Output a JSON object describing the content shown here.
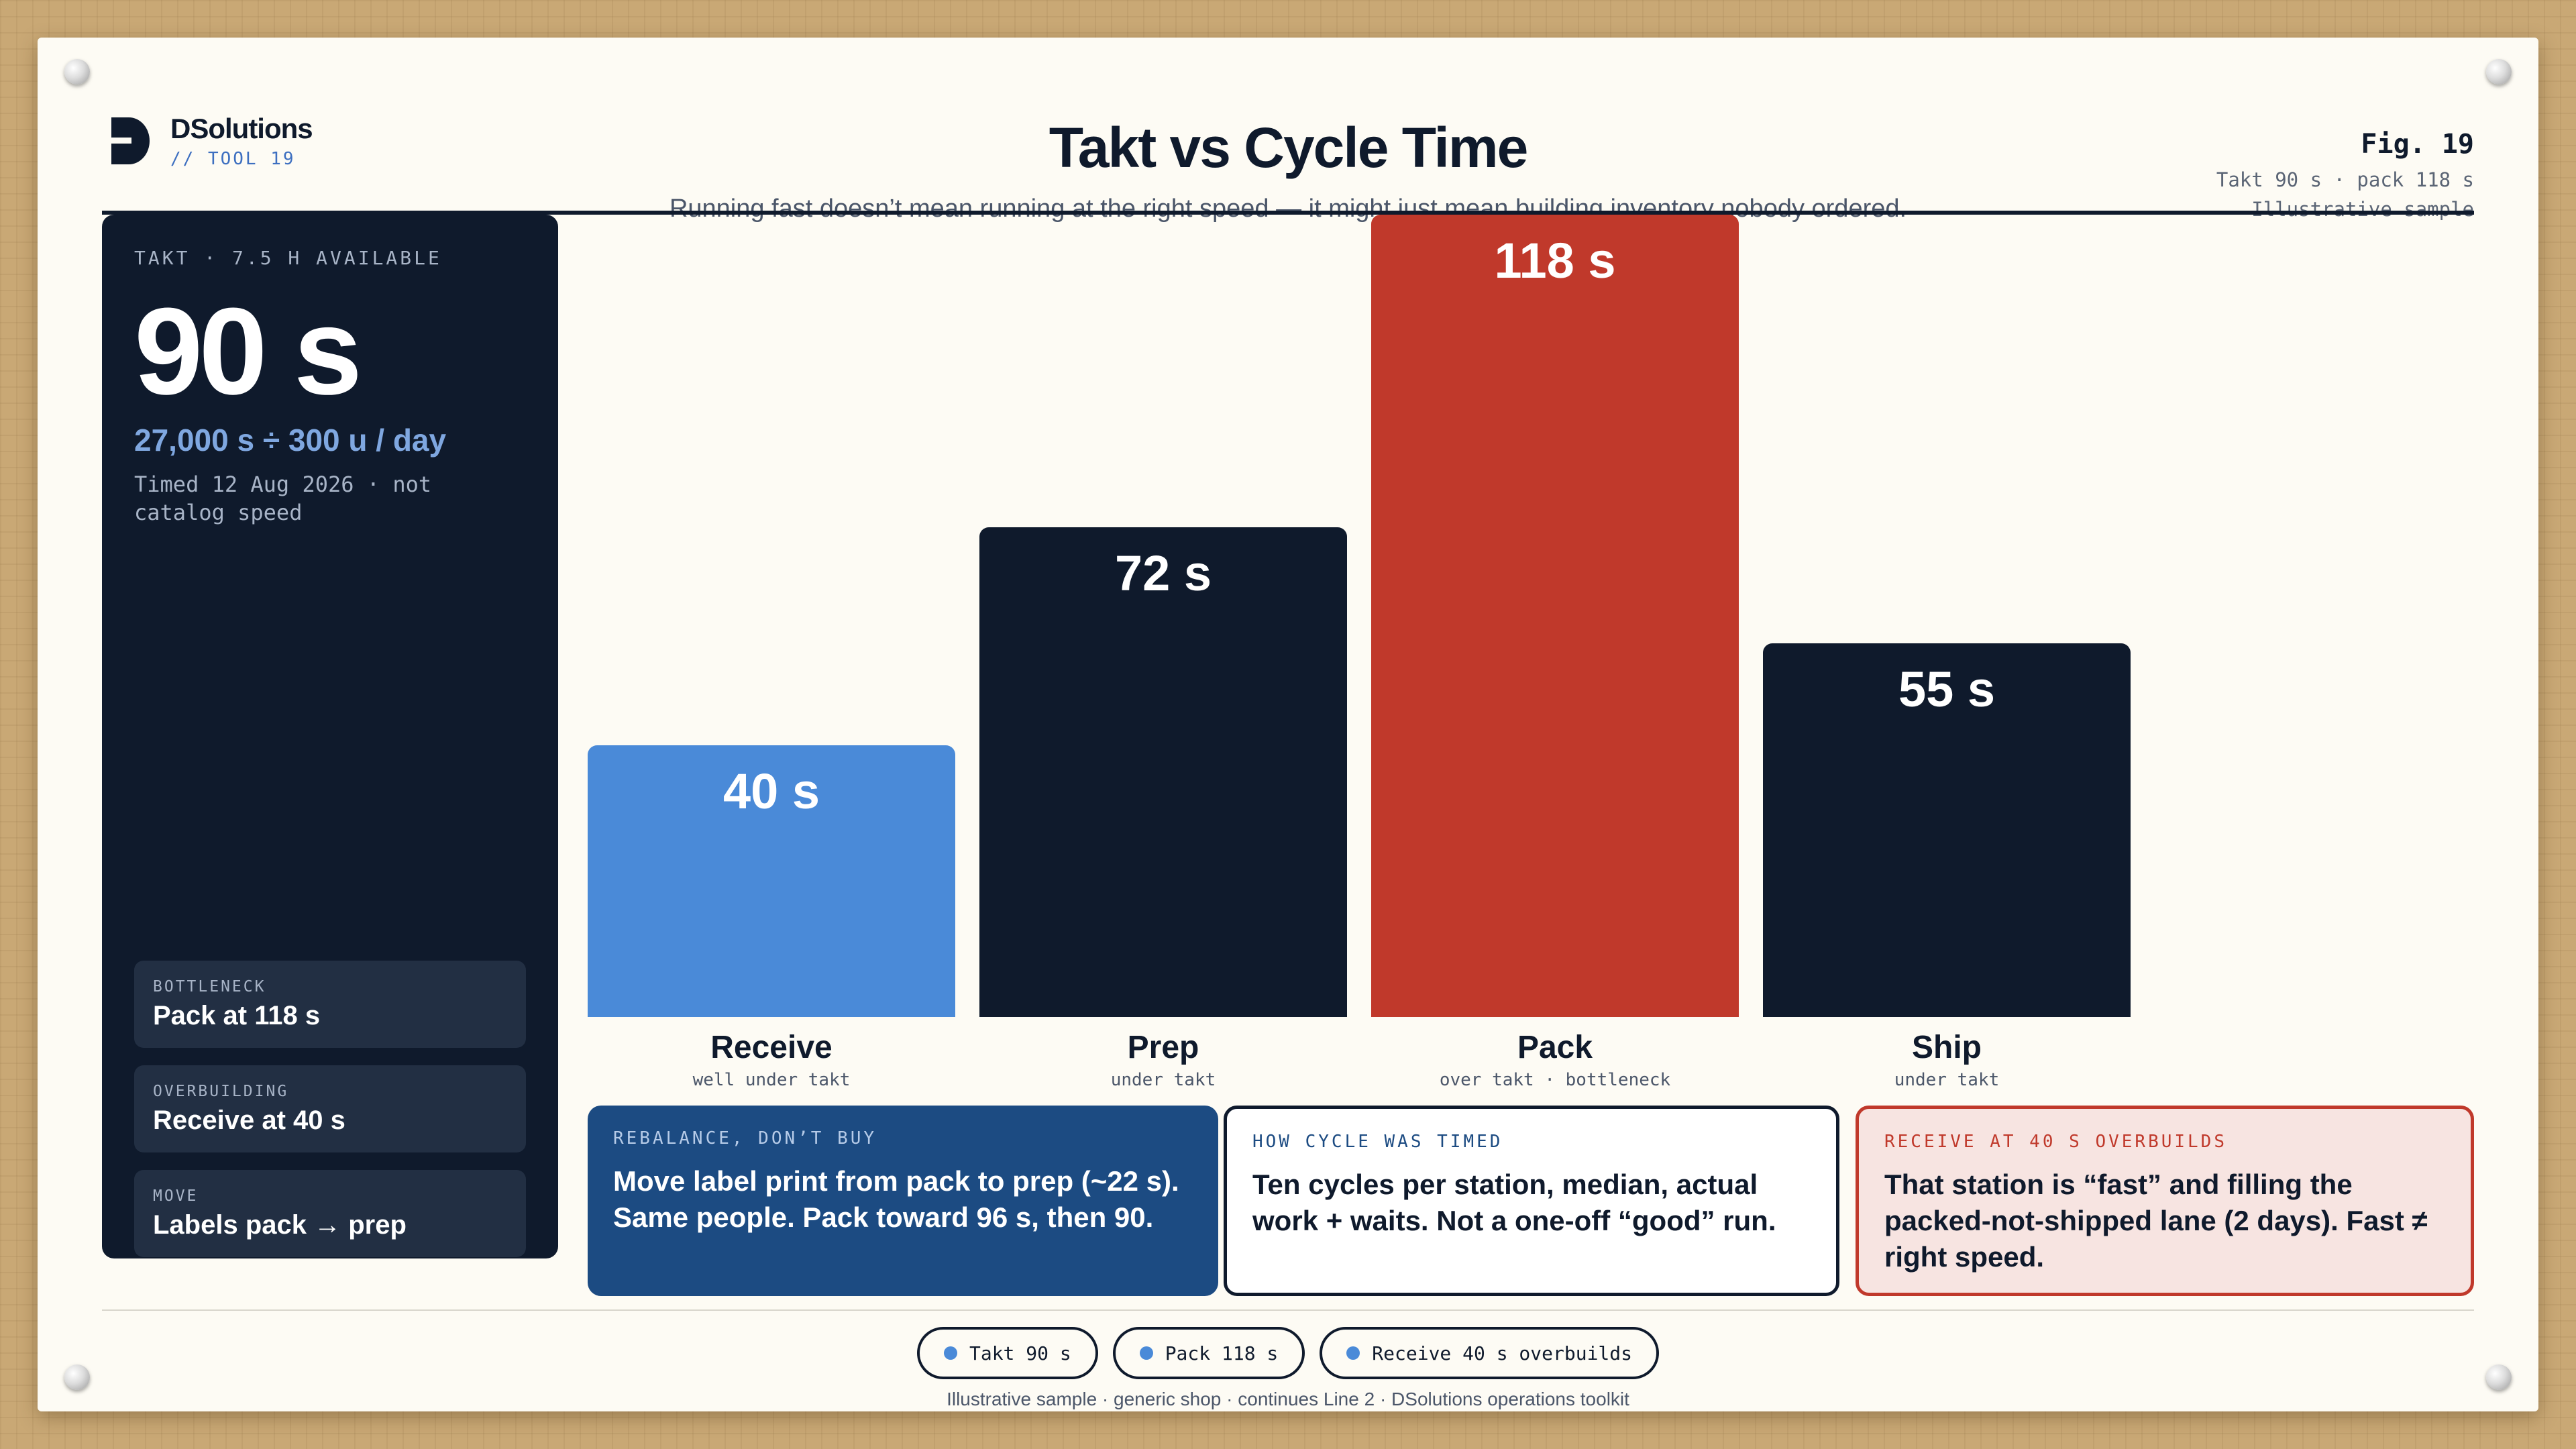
{
  "brand": {
    "name": "DSolutions",
    "tag": "// TOOL 19"
  },
  "header": {
    "title": "Takt vs Cycle Time",
    "subtitle": "Running fast doesn’t mean running at the right speed — it might just mean building inventory nobody ordered."
  },
  "figure": {
    "number": "Fig. 19",
    "meta1": "Takt 90 s · pack 118 s",
    "meta2": "Illustrative sample"
  },
  "panel": {
    "eyebrow": "TAKT · 7.5 H AVAILABLE",
    "big_value": "90 s",
    "formula": "27,000 s ÷ 300 u / day",
    "note": "Timed 12 Aug 2026 · not catalog speed",
    "chips": [
      {
        "label": "BOTTLENECK",
        "value": "Pack at 118 s"
      },
      {
        "label": "OVERBUILDING",
        "value": "Receive at 40 s"
      },
      {
        "label": "MOVE",
        "value": "Labels pack → prep"
      }
    ]
  },
  "colors": {
    "navy": "#0f1a2c",
    "blue": "#4a8ad8",
    "red": "#c0392b",
    "deep_blue": "#1c4b82"
  },
  "chart_data": {
    "type": "bar",
    "title": "Takt vs Cycle Time",
    "categories": [
      "Receive",
      "Prep",
      "Pack",
      "Ship"
    ],
    "values": [
      40,
      72,
      118,
      55
    ],
    "value_labels": [
      "40 s",
      "72 s",
      "118 s",
      "55 s"
    ],
    "sublabels": [
      "well under takt",
      "under takt",
      "over takt · bottleneck",
      "under takt"
    ],
    "bar_colors": [
      "#4a8ad8",
      "#0f1a2c",
      "#c0392b",
      "#0f1a2c"
    ],
    "unit": "s",
    "takt": 90,
    "ylim": [
      0,
      118
    ],
    "grid": false,
    "legend": "none"
  },
  "callouts": [
    {
      "eyebrow": "REBALANCE, DON’T BUY",
      "body": "Move label print from pack to prep (~22 s). Same people. Pack toward 96 s, then 90."
    },
    {
      "eyebrow": "HOW CYCLE WAS TIMED",
      "body": "Ten cycles per station, median, actual work + waits. Not a one-off “good” run."
    },
    {
      "eyebrow": "RECEIVE AT 40 S OVERBUILDS",
      "body": "That station is “fast” and filling the packed-not-shipped lane (2 days). Fast ≠ right speed."
    }
  ],
  "pills": [
    "Takt 90 s",
    "Pack 118 s",
    "Receive 40 s overbuilds"
  ],
  "footer": "Illustrative sample · generic shop · continues Line 2 · DSolutions operations toolkit"
}
